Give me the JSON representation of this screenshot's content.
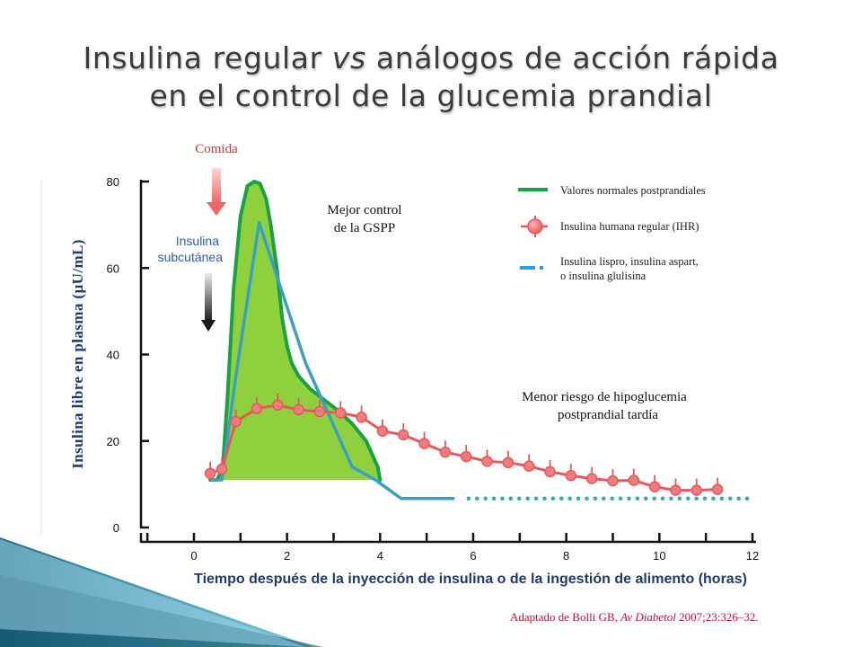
{
  "title": {
    "line1_pre": "Insulina regular ",
    "line1_em": "vs",
    "line1_post": " análogos de acción rápida",
    "line2": "en el control de la glucemia prandial"
  },
  "annotations": {
    "meal": "Comida",
    "injection_line1": "Insulina",
    "injection_line2": "subcutánea",
    "better_control_line1": "Mejor control",
    "better_control_line2": "de la GSPP",
    "lower_risk_line1": "Menor riesgo de hipoglucemia",
    "lower_risk_line2": "postprandial tardía"
  },
  "legend": [
    {
      "label": "Valores normales postprandiales",
      "color": "#2aa84a"
    },
    {
      "label": "Insulina humana regular (IHR)",
      "color": "#e9585a"
    },
    {
      "label_line1": "Insulina lispro, insulina aspart,",
      "label_line2": "o insulina glulisina",
      "color": "#2b9fe0"
    }
  ],
  "source": {
    "pre": "Adaptado de Bolli GB, ",
    "em": "Av Diabetol",
    "post": " 2007;23:326–32."
  },
  "colors": {
    "normal_line": "#1aa145",
    "normal_fill": "#8fd13c",
    "regular": "#e8585a",
    "regular_marker": "#f07c7d",
    "analog": "#3aa0c2",
    "analog_dotted": "#39a7b4",
    "axis": "#111111",
    "ylabel": "#1f3a6e",
    "meal_text": "#d9322f",
    "injection_text": "#2d5ea5"
  },
  "chart_data": {
    "type": "line",
    "xlabel": "Tiempo después de la inyección de insulina o de la ingestión de alimento (horas)",
    "ylabel": "Insulina libre en plasma (µU/mL)",
    "xlim": [
      0,
      12
    ],
    "ylim": [
      0,
      80
    ],
    "xticks": [
      0,
      2,
      4,
      6,
      8,
      10,
      12
    ],
    "yticks": [
      0,
      20,
      40,
      60,
      80
    ],
    "grid": false,
    "legend_position": "top-right",
    "series": [
      {
        "name": "Valores normales postprandiales",
        "style": "solid-filled",
        "x": [
          0.35,
          0.5,
          0.62,
          0.72,
          0.85,
          1.0,
          1.15,
          1.3,
          1.42,
          1.55,
          1.65,
          1.78,
          1.9,
          2.0,
          2.1,
          2.25,
          2.5,
          2.8,
          3.1,
          3.4,
          3.7,
          3.95,
          4.0
        ],
        "y": [
          11,
          11,
          14,
          30,
          55,
          72,
          79,
          80,
          79.5,
          76,
          70,
          60,
          48,
          42,
          38,
          35,
          32,
          29.5,
          27,
          24,
          20,
          14,
          11
        ]
      },
      {
        "name": "Insulina humana regular (IHR)",
        "style": "solid-markers",
        "x": [
          0.35,
          0.6,
          0.9,
          1.35,
          1.8,
          2.25,
          2.7,
          3.15,
          3.6,
          4.05,
          4.5,
          4.95,
          5.4,
          5.85,
          6.3,
          6.75,
          7.2,
          7.65,
          8.1,
          8.55,
          9.0,
          9.45,
          9.9,
          10.35,
          10.8,
          11.25
        ],
        "y": [
          12.5,
          13.5,
          24.5,
          27.5,
          28.3,
          27.2,
          26.8,
          26.5,
          25.5,
          22.3,
          21.4,
          19.4,
          17.4,
          16.4,
          15.3,
          15.0,
          14.2,
          12.9,
          12.0,
          11.3,
          10.8,
          10.9,
          9.4,
          8.6,
          8.6,
          8.8
        ]
      },
      {
        "name": "Insulina lispro, insulina aspart, o insulina glulisina",
        "style": "solid-then-dotted",
        "x": [
          0.35,
          0.6,
          0.9,
          1.4,
          2.4,
          3.4,
          3.9,
          4.45,
          5.6
        ],
        "y": [
          11,
          11,
          35,
          70.5,
          38,
          14,
          11,
          6.7,
          6.7
        ],
        "dotted_x": [
          5.9,
          12
        ],
        "dotted_y": [
          6.7,
          6.7
        ]
      }
    ]
  }
}
